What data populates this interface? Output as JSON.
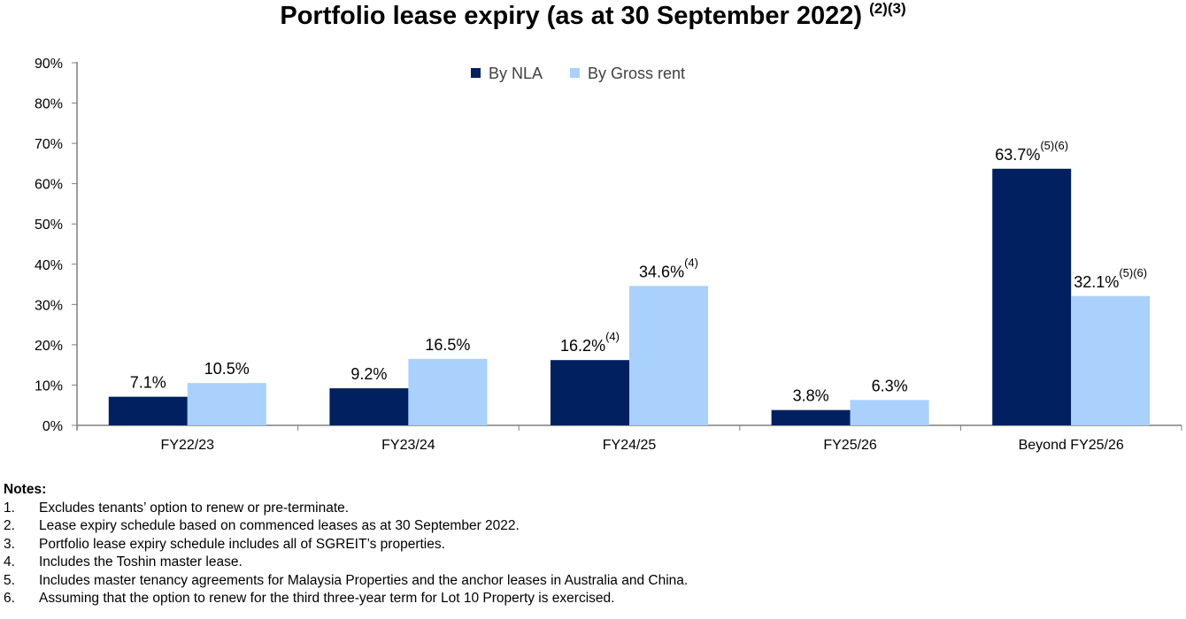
{
  "chart_data": {
    "type": "bar",
    "title": "Portfolio lease expiry (as at 30 September 2022)",
    "title_superscript": "(2)(3)",
    "categories": [
      "FY22/23",
      "FY23/24",
      "FY24/25",
      "FY25/26",
      "Beyond FY25/26"
    ],
    "series": [
      {
        "name": "By NLA",
        "color": "#002060",
        "values": [
          7.1,
          9.2,
          16.2,
          3.8,
          63.7
        ],
        "labels": [
          "7.1%",
          "9.2%",
          "16.2%",
          "3.8%",
          "63.7%"
        ],
        "label_notes": [
          "",
          "",
          "(4)",
          "",
          "(5)(6)"
        ]
      },
      {
        "name": "By Gross rent",
        "color": "#A9D1FC",
        "values": [
          10.5,
          16.5,
          34.6,
          6.3,
          32.1
        ],
        "labels": [
          "10.5%",
          "16.5%",
          "34.6%",
          "6.3%",
          "32.1%"
        ],
        "label_notes": [
          "",
          "",
          "(4)",
          "",
          "(5)(6)"
        ]
      }
    ],
    "yticks": [
      "0%",
      "10%",
      "20%",
      "30%",
      "40%",
      "50%",
      "60%",
      "70%",
      "80%",
      "90%"
    ],
    "ylim": [
      0,
      90
    ],
    "grid": false,
    "legend": "top-center"
  },
  "notes": {
    "heading": "Notes:",
    "items": [
      {
        "num": "1.",
        "text": "Excludes tenants’ option to renew or pre-terminate."
      },
      {
        "num": "2.",
        "text": "Lease expiry schedule based on commenced leases as at 30 September 2022."
      },
      {
        "num": "3.",
        "text": "Portfolio lease expiry schedule includes all of SGREIT’s properties."
      },
      {
        "num": "4.",
        "text": "Includes the Toshin master lease."
      },
      {
        "num": "5.",
        "text": "Includes master tenancy agreements for Malaysia Properties and the anchor leases in Australia and China."
      },
      {
        "num": "6.",
        "text": "Assuming that the option to renew for the third three-year term for Lot 10 Property is exercised."
      }
    ]
  }
}
